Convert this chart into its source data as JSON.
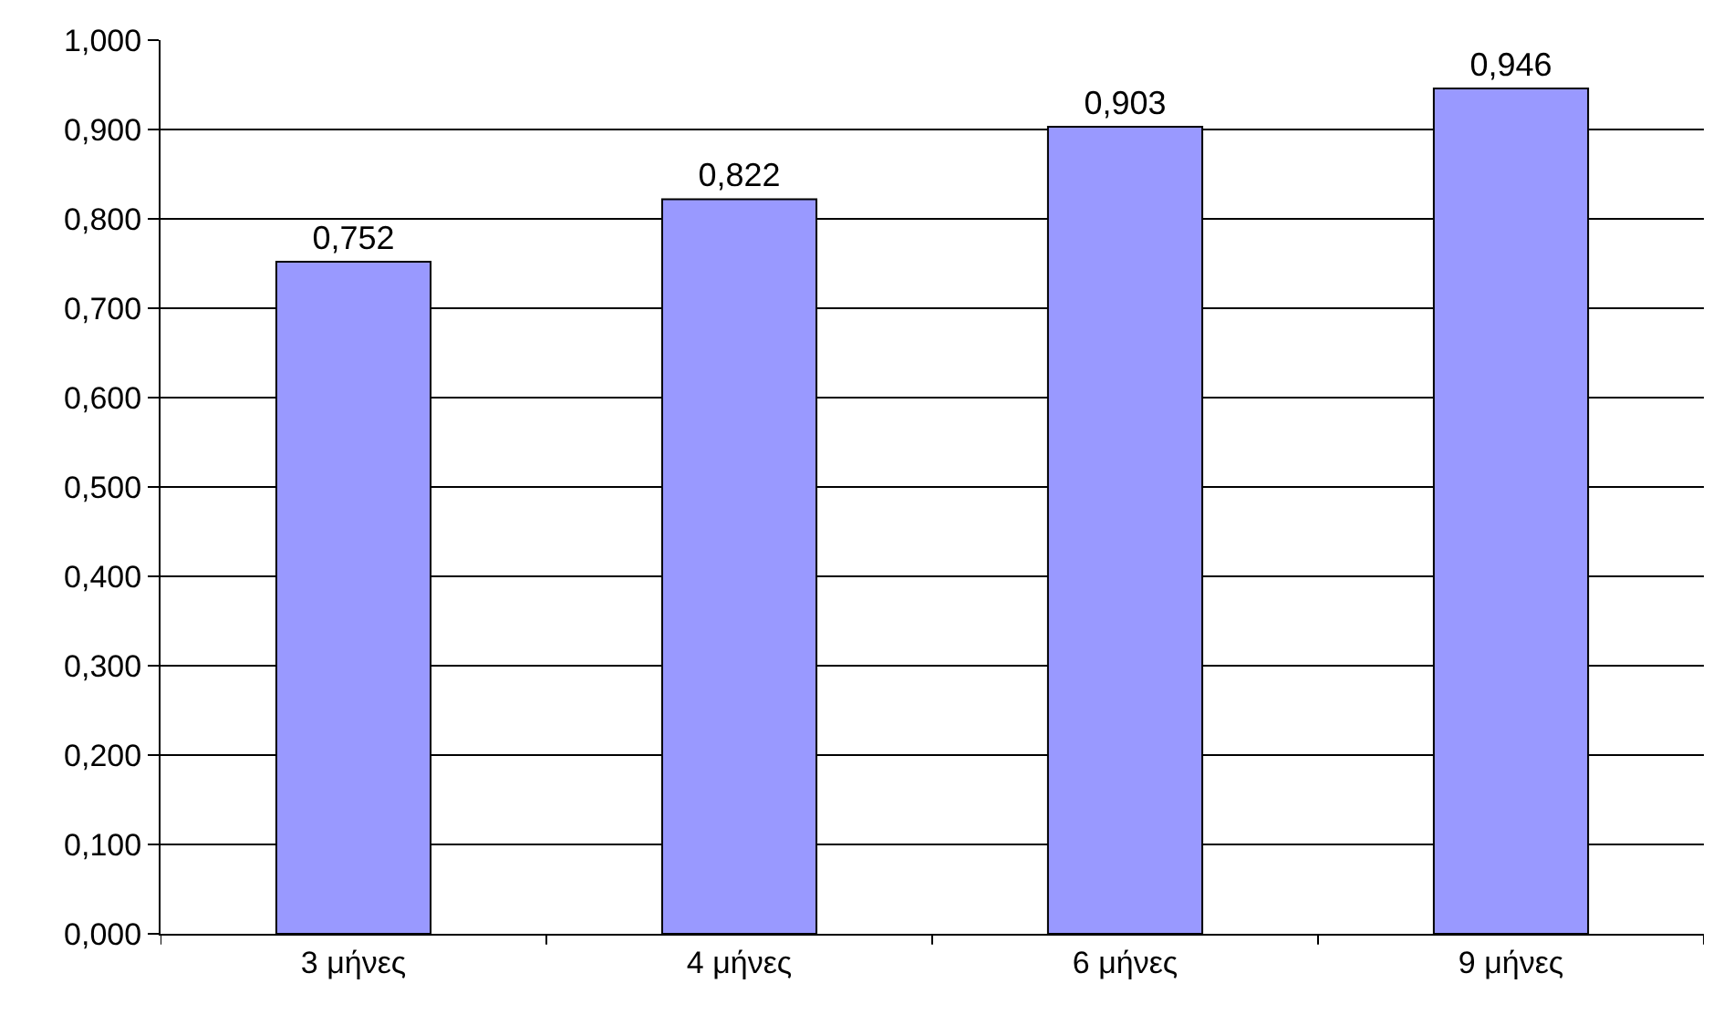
{
  "chart_data": {
    "type": "bar",
    "categories": [
      "3 μήνες",
      "4 μήνες",
      "6 μήνες",
      "9 μήνες"
    ],
    "values": [
      0.752,
      0.822,
      0.903,
      0.946
    ],
    "value_labels": [
      "0,752",
      "0,822",
      "0,903",
      "0,946"
    ],
    "color": "#9999ff",
    "ylim": [
      0,
      1
    ],
    "yticks": [
      {
        "value": 0,
        "label": "0,000"
      },
      {
        "value": 0.1,
        "label": "0,100"
      },
      {
        "value": 0.2,
        "label": "0,200"
      },
      {
        "value": 0.3,
        "label": "0,300"
      },
      {
        "value": 0.4,
        "label": "0,400"
      },
      {
        "value": 0.5,
        "label": "0,500"
      },
      {
        "value": 0.6,
        "label": "0,600"
      },
      {
        "value": 0.7,
        "label": "0,700"
      },
      {
        "value": 0.8,
        "label": "0,800"
      },
      {
        "value": 0.9,
        "label": "0,900"
      },
      {
        "value": 1.0,
        "label": "1,000"
      }
    ],
    "grid": "y",
    "legend": false
  }
}
